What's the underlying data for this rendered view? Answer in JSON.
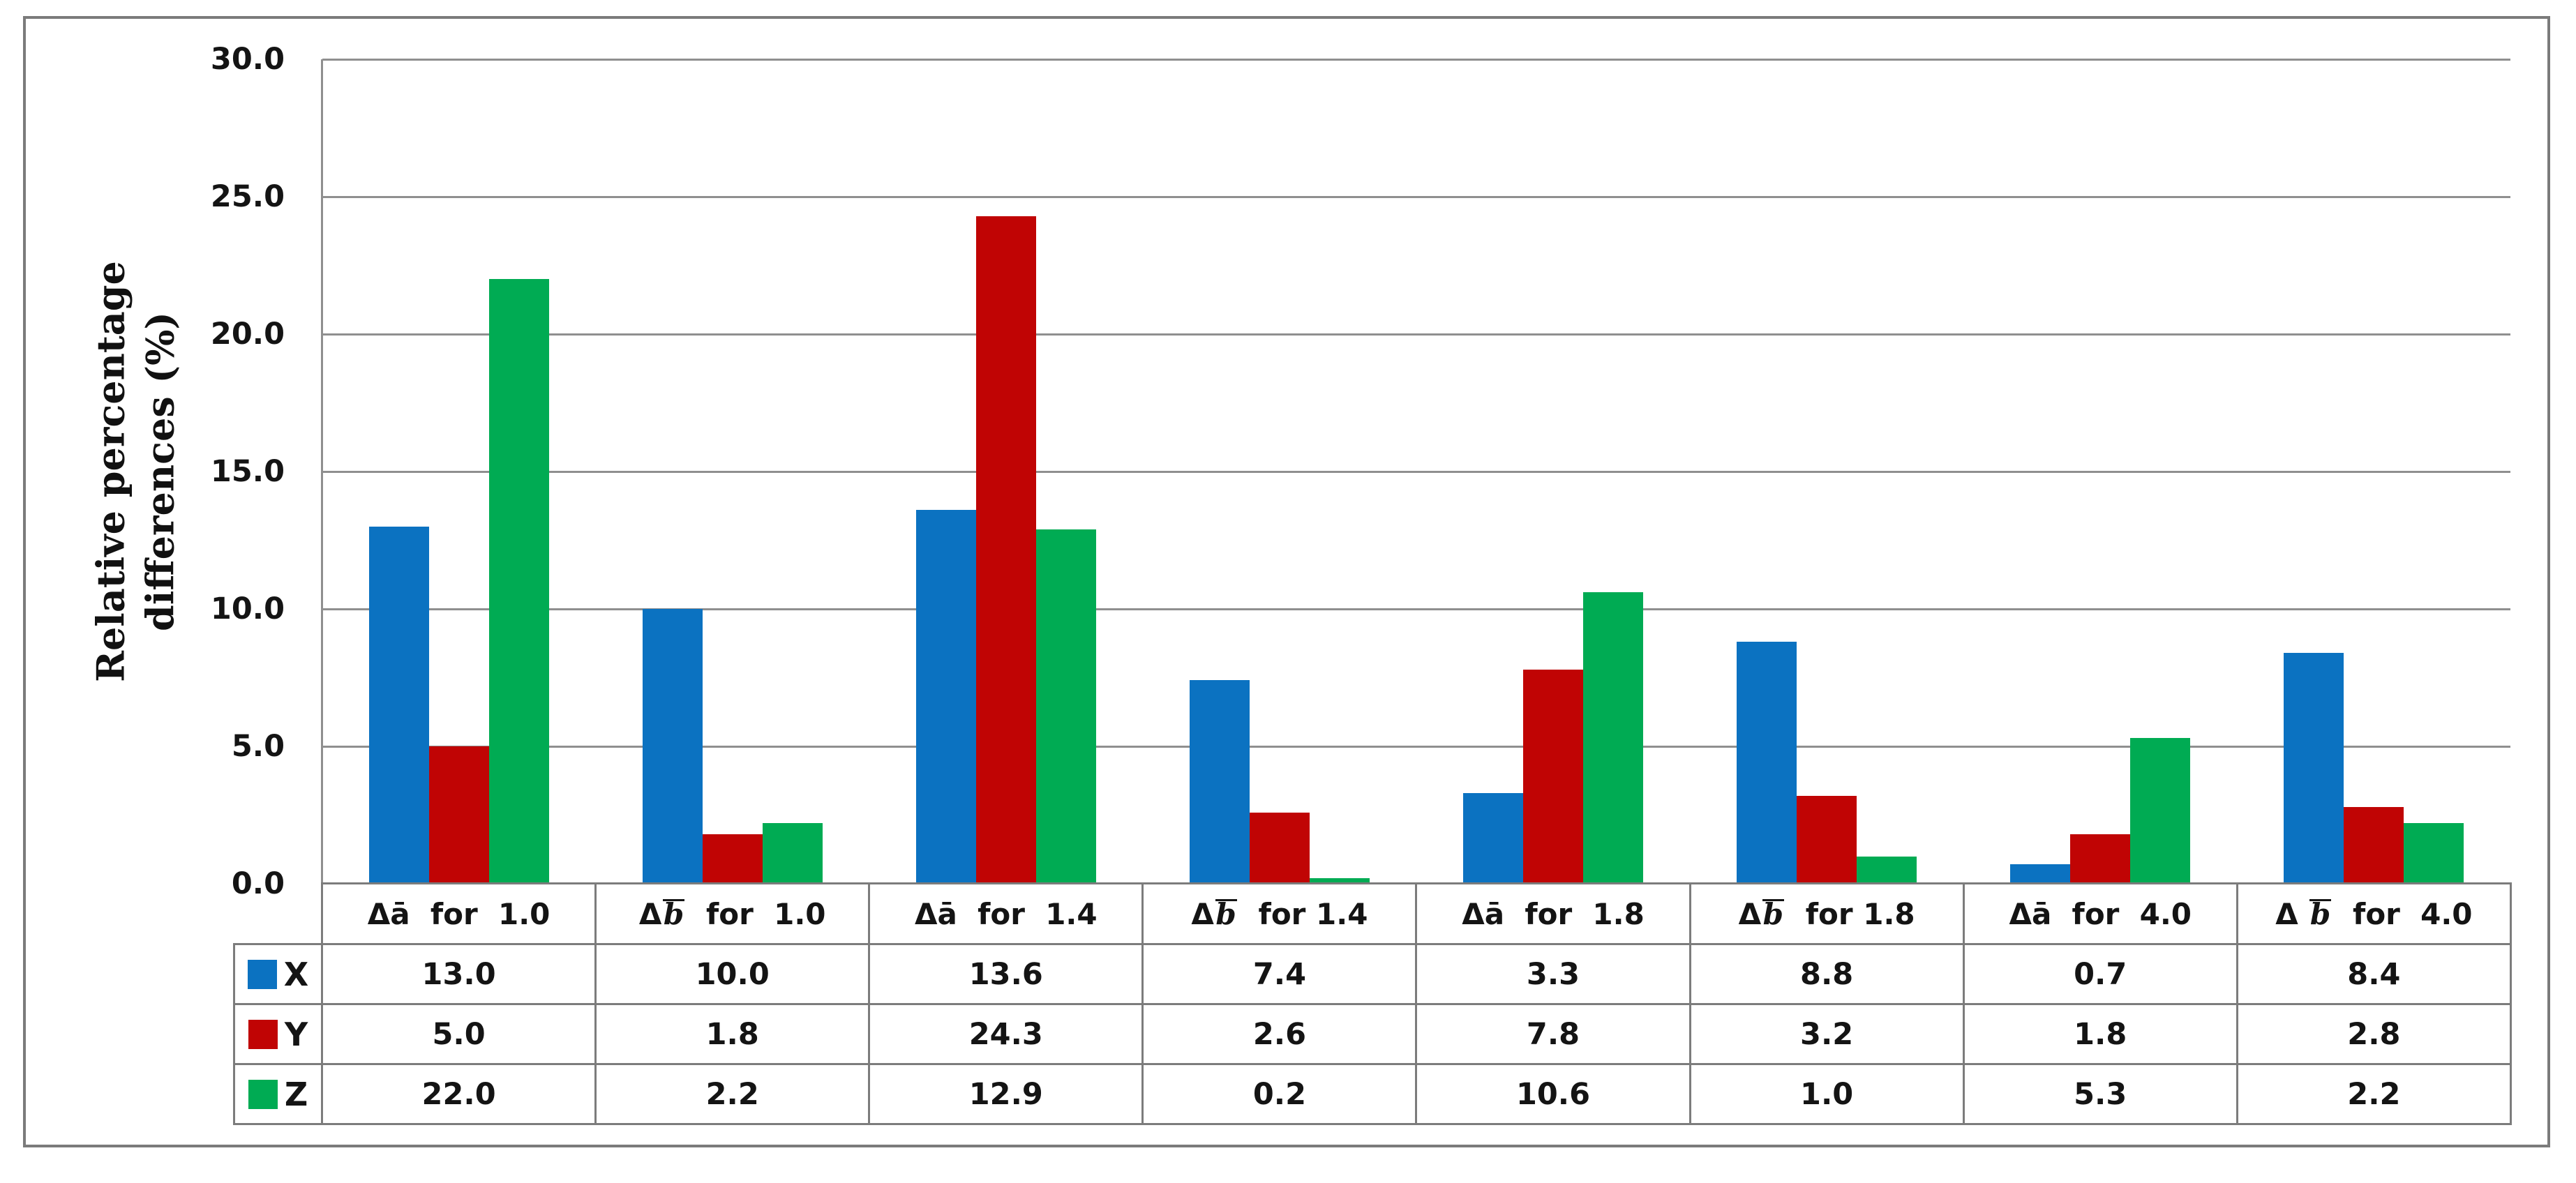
{
  "figure": {
    "y_axis_title": "Relative percentage differences (%)",
    "y_axis_title_line1": "Relative percentage",
    "y_axis_title_line2": "differences (%)"
  },
  "chart_data": {
    "type": "bar",
    "title": "",
    "xlabel": "",
    "ylabel": "Relative percentage differences (%)",
    "ylim": [
      0,
      30
    ],
    "ytick_interval": 5,
    "ytick_values": [
      30,
      25,
      20,
      15,
      10,
      5,
      0
    ],
    "ytick_labels": [
      "30.0",
      "25.0",
      "20.0",
      "15.0",
      "10.0",
      "5.0",
      "0.0"
    ],
    "grid": true,
    "legend_position": "table-row-headers",
    "categories": [
      "Δā  for  1.0",
      "Δb̄  for  1.0",
      "Δā  for  1.4",
      "Δb̄  for 1.4",
      "Δā  for  1.8",
      "Δb̄  for 1.8",
      "Δā  for  4.0",
      "Δ b̄  for  4.0"
    ],
    "series": [
      {
        "name": "X",
        "color": "#0b72c1",
        "values": [
          13.0,
          10.0,
          13.6,
          7.4,
          3.3,
          8.8,
          0.7,
          8.4
        ]
      },
      {
        "name": "Y",
        "color": "#c00404",
        "values": [
          5.0,
          1.8,
          24.3,
          2.6,
          7.8,
          3.2,
          1.8,
          2.8
        ]
      },
      {
        "name": "Z",
        "color": "#00ab53",
        "values": [
          22.0,
          2.2,
          12.9,
          0.2,
          10.6,
          1.0,
          5.3,
          2.2
        ]
      }
    ],
    "value_format": "0.0"
  },
  "colors": {
    "background": "#ffffff",
    "frame_border": "#7b7b7b",
    "gridline": "#8f8f8f",
    "table_border": "#7c7c7c",
    "text": "#141414",
    "series_x": "#0b72c1",
    "series_y": "#c00404",
    "series_z": "#00ab53"
  }
}
